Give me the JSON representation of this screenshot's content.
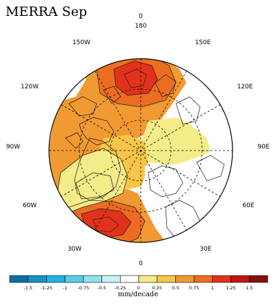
{
  "title": "MERRA Sep",
  "longitude_labels": {
    "top0": "0",
    "top180": "180",
    "w150": "150W",
    "e150": "150E",
    "w120": "120W",
    "e120": "120E",
    "w90": "90W",
    "e90": "90E",
    "w60": "60W",
    "e60": "60E",
    "w30": "30W",
    "e30": "30E",
    "bottom0": "0"
  },
  "colorbar": {
    "units": "mm/decade",
    "ticks": [
      "-1.5",
      "-1.25",
      "-1",
      "-0.75",
      "-0.5",
      "-0.25",
      "0",
      "0.25",
      "0.5",
      "0.75",
      "1",
      "1.25",
      "1.5"
    ],
    "colors": [
      "#0b6fa4",
      "#1593c8",
      "#23b1e0",
      "#56cde9",
      "#8fe2ef",
      "#c8f2f5",
      "#ffffff",
      "#f4ec88",
      "#f7c547",
      "#f19a32",
      "#ec6d22",
      "#e2321b",
      "#c41414",
      "#8a0e0e"
    ]
  }
}
